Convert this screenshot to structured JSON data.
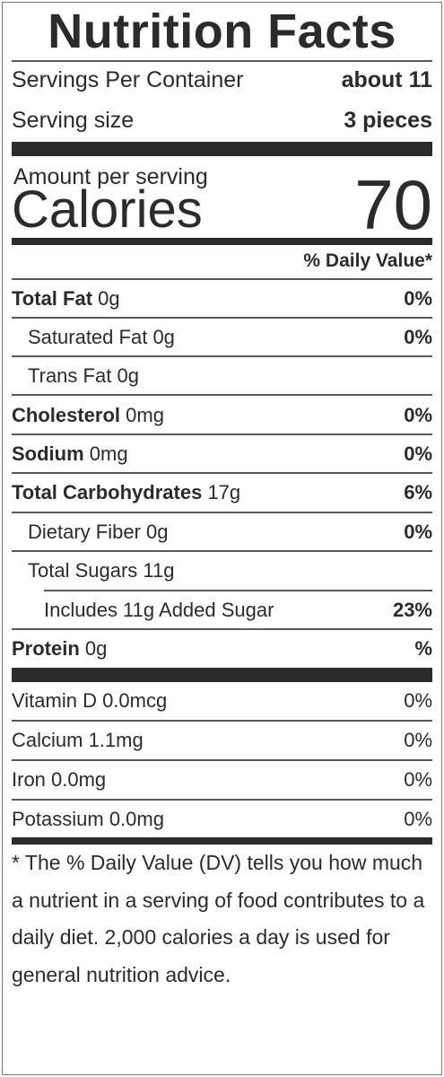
{
  "title": "Nutrition Facts",
  "servings_per_container": {
    "label": "Servings Per Container",
    "value": "about 11"
  },
  "serving_size": {
    "label": "Serving size",
    "value": "3 pieces"
  },
  "amount_per_serving": "Amount per serving",
  "calories": {
    "label": "Calories",
    "value": "70"
  },
  "daily_value_header": "% Daily Value*",
  "nutrients": [
    {
      "name": "Total Fat",
      "amount": "0g",
      "dv": "0%"
    },
    {
      "name": "Saturated Fat",
      "amount": "0g",
      "dv": "0%"
    },
    {
      "name": "Trans Fat",
      "amount": "0g",
      "dv": ""
    },
    {
      "name": "Cholesterol",
      "amount": "0mg",
      "dv": "0%"
    },
    {
      "name": "Sodium",
      "amount": "0mg",
      "dv": "0%"
    },
    {
      "name": "Total Carbohydrates",
      "amount": "17g",
      "dv": "6%"
    },
    {
      "name": "Dietary Fiber",
      "amount": "0g",
      "dv": "0%"
    },
    {
      "name": "Total Sugars",
      "amount": "11g",
      "dv": ""
    },
    {
      "name": "Includes 11g Added Sugar",
      "amount": "",
      "dv": "23%"
    },
    {
      "name": "Protein",
      "amount": "0g",
      "dv": "%"
    }
  ],
  "vitamins": [
    {
      "text": "Vitamin D 0.0mcg",
      "dv": "0%"
    },
    {
      "text": "Calcium 1.1mg",
      "dv": "0%"
    },
    {
      "text": "Iron 0.0mg",
      "dv": "0%"
    },
    {
      "text": "Potassium 0.0mg",
      "dv": "0%"
    }
  ],
  "footnote": "* The % Daily Value (DV) tells you how much a nutrient in a serving of food contributes to a daily diet. 2,000 calories a day is used for general nutrition advice."
}
